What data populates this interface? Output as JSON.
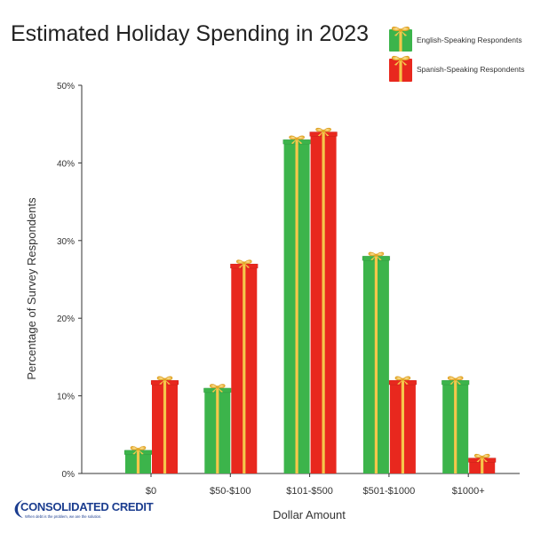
{
  "chart_data": {
    "type": "bar",
    "title": "Estimated Holiday Spending in 2023",
    "xlabel": "Dollar Amount",
    "ylabel": "Percentage of Survey Respondents",
    "categories": [
      "$0",
      "$50-$100",
      "$101-$500",
      "$501-$1000",
      "$1000+"
    ],
    "series": [
      {
        "name": "English-Speaking Respondents",
        "color": "#3cb44b",
        "values": [
          3,
          11,
          43,
          28,
          12
        ]
      },
      {
        "name": "Spanish-Speaking Respondents",
        "color": "#e8281e",
        "values": [
          12,
          27,
          44,
          12,
          2
        ]
      }
    ],
    "ylim": [
      0,
      50
    ],
    "yticks": [
      0,
      10,
      20,
      30,
      40,
      50
    ],
    "ytick_labels": [
      "0%",
      "10%",
      "20%",
      "30%",
      "40%",
      "50%"
    ],
    "grid": false,
    "legend_position": "top-right",
    "bar_style": "gift-box",
    "ribbon_color": "#f5c74a"
  },
  "branding": {
    "logo_name": "CONSOLIDATED CREDIT",
    "logo_tagline": "When debt is the problem, we are the solution."
  }
}
